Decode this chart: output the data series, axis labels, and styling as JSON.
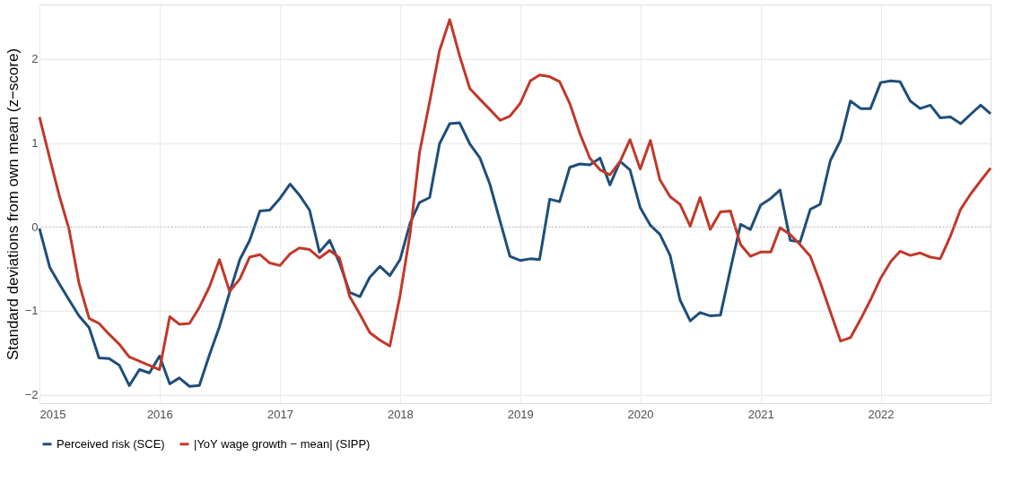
{
  "chart_data": {
    "type": "line",
    "ylabel": "Standard deviations from own mean (z−score)",
    "x": [
      "2015-01",
      "2015-02",
      "2015-03",
      "2015-04",
      "2015-05",
      "2015-06",
      "2015-07",
      "2015-08",
      "2015-09",
      "2015-10",
      "2015-11",
      "2015-12",
      "2016-01",
      "2016-02",
      "2016-03",
      "2016-04",
      "2016-05",
      "2016-06",
      "2016-07",
      "2016-08",
      "2016-09",
      "2016-10",
      "2016-11",
      "2016-12",
      "2017-01",
      "2017-02",
      "2017-03",
      "2017-04",
      "2017-05",
      "2017-06",
      "2017-07",
      "2017-08",
      "2017-09",
      "2017-10",
      "2017-11",
      "2017-12",
      "2018-01",
      "2018-02",
      "2018-03",
      "2018-04",
      "2018-05",
      "2018-06",
      "2018-07",
      "2018-08",
      "2018-09",
      "2018-10",
      "2018-11",
      "2018-12",
      "2019-01",
      "2019-02",
      "2019-03",
      "2019-04",
      "2019-05",
      "2019-06",
      "2019-07",
      "2019-08",
      "2019-09",
      "2019-10",
      "2019-11",
      "2019-12",
      "2020-01",
      "2020-02",
      "2020-03",
      "2020-04",
      "2020-05",
      "2020-06",
      "2020-07",
      "2020-08",
      "2020-09",
      "2020-10",
      "2020-11",
      "2020-12",
      "2021-01",
      "2021-02",
      "2021-03",
      "2021-04",
      "2021-05",
      "2021-06",
      "2021-07",
      "2021-08",
      "2021-09",
      "2021-10",
      "2021-11",
      "2021-12",
      "2022-01",
      "2022-02",
      "2022-03",
      "2022-04",
      "2022-05",
      "2022-06",
      "2022-07",
      "2022-08",
      "2022-09",
      "2022-10",
      "2022-11",
      "2022-12"
    ],
    "series": [
      {
        "name": "Perceived risk (SCE)",
        "color": "#1f4e79",
        "values": [
          -0.02,
          -0.48,
          -0.67,
          -0.87,
          -1.06,
          -1.2,
          -1.56,
          -1.57,
          -1.65,
          -1.89,
          -1.7,
          -1.74,
          -1.54,
          -1.87,
          -1.8,
          -1.9,
          -1.89,
          -1.52,
          -1.19,
          -0.78,
          -0.39,
          -0.16,
          0.19,
          0.2,
          0.34,
          0.51,
          0.38,
          0.2,
          -0.3,
          -0.16,
          -0.43,
          -0.78,
          -0.83,
          -0.6,
          -0.47,
          -0.58,
          -0.39,
          0.05,
          0.29,
          0.35,
          0.99,
          1.23,
          1.24,
          0.99,
          0.82,
          0.51,
          0.07,
          -0.35,
          -0.4,
          -0.38,
          -0.39,
          0.33,
          0.3,
          0.71,
          0.75,
          0.74,
          0.82,
          0.5,
          0.78,
          0.68,
          0.23,
          0.02,
          -0.09,
          -0.34,
          -0.87,
          -1.12,
          -1.02,
          -1.06,
          -1.05,
          -0.51,
          0.03,
          -0.03,
          0.26,
          0.34,
          0.44,
          -0.16,
          -0.18,
          0.21,
          0.27,
          0.79,
          1.03,
          1.5,
          1.41,
          1.41,
          1.72,
          1.74,
          1.73,
          1.5,
          1.41,
          1.45,
          1.3,
          1.31,
          1.23,
          1.34,
          1.45,
          1.35
        ]
      },
      {
        "name": "|YoY wage growth − mean| (SIPP)",
        "color": "#c0392b",
        "values": [
          1.31,
          0.82,
          0.39,
          -0.03,
          -0.67,
          -1.09,
          -1.15,
          -1.28,
          -1.4,
          -1.55,
          -1.6,
          -1.65,
          -1.7,
          -1.07,
          -1.16,
          -1.15,
          -0.96,
          -0.71,
          -0.39,
          -0.77,
          -0.62,
          -0.36,
          -0.33,
          -0.43,
          -0.46,
          -0.32,
          -0.25,
          -0.27,
          -0.37,
          -0.28,
          -0.37,
          -0.83,
          -1.04,
          -1.26,
          -1.35,
          -1.42,
          -0.82,
          -0.07,
          0.88,
          1.49,
          2.1,
          2.47,
          2.04,
          1.65,
          1.52,
          1.4,
          1.27,
          1.32,
          1.47,
          1.74,
          1.81,
          1.79,
          1.73,
          1.47,
          1.12,
          0.82,
          0.68,
          0.62,
          0.78,
          1.04,
          0.69,
          1.03,
          0.56,
          0.36,
          0.27,
          0.01,
          0.35,
          -0.03,
          0.18,
          0.19,
          -0.21,
          -0.35,
          -0.3,
          -0.3,
          -0.01,
          -0.09,
          -0.21,
          -0.35,
          -0.66,
          -1.01,
          -1.36,
          -1.32,
          -1.1,
          -0.87,
          -0.61,
          -0.41,
          -0.29,
          -0.34,
          -0.31,
          -0.36,
          -0.38,
          -0.11,
          0.21,
          0.39,
          0.55,
          0.7
        ]
      }
    ],
    "xlim": [
      "2015-01",
      "2022-12"
    ],
    "xticks": [
      "2015",
      "2016",
      "2017",
      "2018",
      "2019",
      "2020",
      "2021",
      "2022"
    ],
    "ylim": [
      -2.1,
      2.65
    ],
    "yticks": [
      -2,
      -1,
      0,
      1,
      2
    ],
    "ref_lines": [
      {
        "axis": "y",
        "value": 0,
        "color": "#aaaaaa",
        "line_style": "dotted"
      }
    ],
    "grid": true,
    "legend": "bottom",
    "line_style": "solid",
    "marker": "none"
  }
}
